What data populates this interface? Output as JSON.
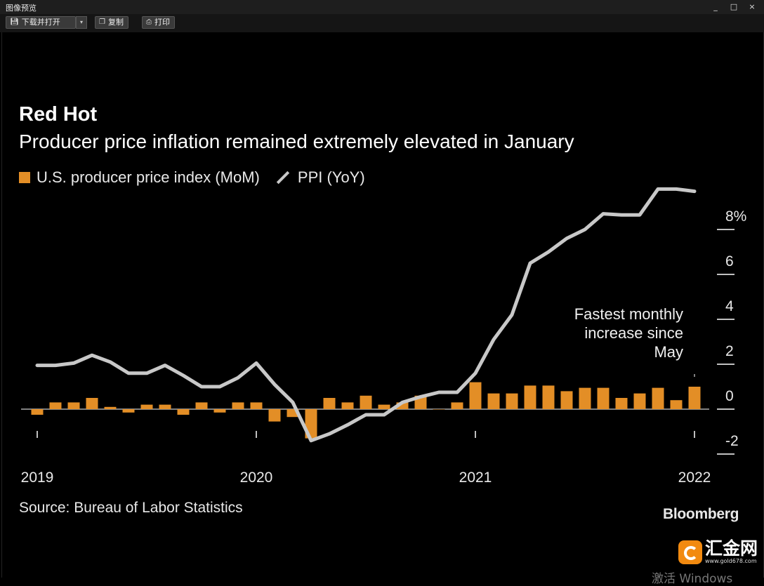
{
  "window": {
    "title": "图像预览",
    "controls": [
      "_",
      "□",
      "×"
    ]
  },
  "toolbar": {
    "download_label": "下载并打开",
    "copy_label": "复制",
    "print_label": "打印",
    "dropdown_arrow": "▾"
  },
  "chart_data": {
    "type": "bar",
    "title": "Red Hot",
    "subtitle": "Producer price inflation remained extremely elevated in January",
    "legend": [
      {
        "name": "U.S. producer price index (MoM)",
        "kind": "bar",
        "color": "#e38e26"
      },
      {
        "name": "PPI (YoY)",
        "kind": "line",
        "color": "#c8c8c8"
      }
    ],
    "x_tick_labels": [
      "2019",
      "2020",
      "2021",
      "2022"
    ],
    "y_tick_labels": [
      "8%",
      "6",
      "4",
      "2",
      "0",
      "-2"
    ],
    "y_ticks": [
      8,
      6,
      4,
      2,
      0,
      -2
    ],
    "ylim": [
      -2.2,
      9.2
    ],
    "xlim": [
      0,
      36
    ],
    "series": [
      {
        "name": "U.S. producer price index (MoM)",
        "type": "bar",
        "x": [
          0,
          1,
          2,
          3,
          4,
          5,
          6,
          7,
          8,
          9,
          10,
          11,
          12,
          13,
          14,
          15,
          16,
          17,
          18,
          19,
          20,
          21,
          22,
          23,
          24,
          25,
          26,
          27,
          28,
          29,
          30,
          31,
          32,
          33,
          34,
          35,
          36
        ],
        "values": [
          -0.25,
          0.3,
          0.3,
          0.5,
          0.1,
          -0.15,
          0.2,
          0.2,
          -0.25,
          0.3,
          -0.15,
          0.3,
          0.3,
          -0.55,
          -0.35,
          -1.3,
          0.5,
          0.3,
          0.6,
          0.2,
          0.3,
          0.6,
          0.0,
          0.3,
          1.2,
          0.7,
          0.7,
          1.05,
          1.05,
          0.8,
          0.95,
          0.95,
          0.5,
          0.7,
          0.95,
          0.4,
          1.0
        ]
      },
      {
        "name": "PPI (YoY)",
        "type": "line",
        "x": [
          0,
          1,
          2,
          3,
          4,
          5,
          6,
          7,
          8,
          9,
          10,
          11,
          12,
          13,
          14,
          15,
          16,
          17,
          18,
          19,
          20,
          21,
          22,
          23,
          24,
          25,
          26,
          27,
          28,
          29,
          30,
          31,
          32,
          33,
          34,
          35,
          36
        ],
        "values": [
          1.95,
          1.95,
          2.05,
          2.4,
          2.1,
          1.6,
          1.6,
          1.95,
          1.5,
          1.0,
          1.0,
          1.4,
          2.05,
          1.1,
          0.3,
          -1.4,
          -1.1,
          -0.7,
          -0.25,
          -0.25,
          0.3,
          0.55,
          0.75,
          0.75,
          1.6,
          3.1,
          4.2,
          6.5,
          7.0,
          7.6,
          8.0,
          8.7,
          8.65,
          8.65,
          9.8,
          9.8,
          9.7
        ]
      }
    ],
    "annotation": {
      "lines": [
        "Fastest monthly",
        "increase since",
        "May"
      ],
      "x": 36,
      "y": 1.5
    },
    "source": "Source: Bureau of Labor Statistics",
    "brand": "Bloomberg"
  },
  "watermark": {
    "text": "汇金网",
    "url": "www.gold678.com"
  },
  "os_overlay": "激活 Windows"
}
